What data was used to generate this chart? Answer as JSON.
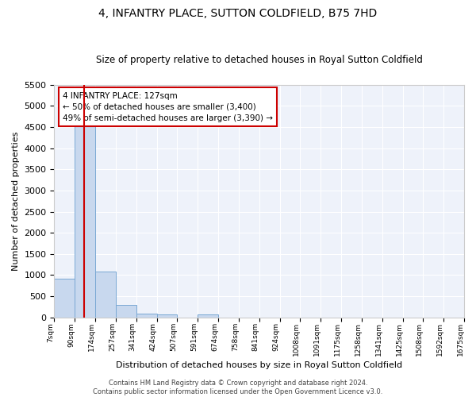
{
  "title": "4, INFANTRY PLACE, SUTTON COLDFIELD, B75 7HD",
  "subtitle": "Size of property relative to detached houses in Royal Sutton Coldfield",
  "xlabel": "Distribution of detached houses by size in Royal Sutton Coldfield",
  "ylabel": "Number of detached properties",
  "bar_color": "#c8d8ee",
  "bar_edge_color": "#7aa8d4",
  "vline_color": "#cc0000",
  "annotation_line1": "4 INFANTRY PLACE: 127sqm",
  "annotation_line2": "← 50% of detached houses are smaller (3,400)",
  "annotation_line3": "49% of semi-detached houses are larger (3,390) →",
  "annotation_box_edge": "#cc0000",
  "bin_labels": [
    "7sqm",
    "90sqm",
    "174sqm",
    "257sqm",
    "341sqm",
    "424sqm",
    "507sqm",
    "591sqm",
    "674sqm",
    "758sqm",
    "841sqm",
    "924sqm",
    "1008sqm",
    "1091sqm",
    "1175sqm",
    "1258sqm",
    "1341sqm",
    "1425sqm",
    "1508sqm",
    "1592sqm",
    "1675sqm"
  ],
  "bar_heights": [
    920,
    4560,
    1075,
    300,
    85,
    65,
    0,
    65,
    0,
    0,
    0,
    0,
    0,
    0,
    0,
    0,
    0,
    0,
    0,
    0
  ],
  "ylim": [
    0,
    5500
  ],
  "yticks": [
    0,
    500,
    1000,
    1500,
    2000,
    2500,
    3000,
    3500,
    4000,
    4500,
    5000,
    5500
  ],
  "vline_pos": 1.27,
  "footer_line1": "Contains HM Land Registry data © Crown copyright and database right 2024.",
  "footer_line2": "Contains public sector information licensed under the Open Government Licence v3.0.",
  "bg_color": "#eef2fa"
}
